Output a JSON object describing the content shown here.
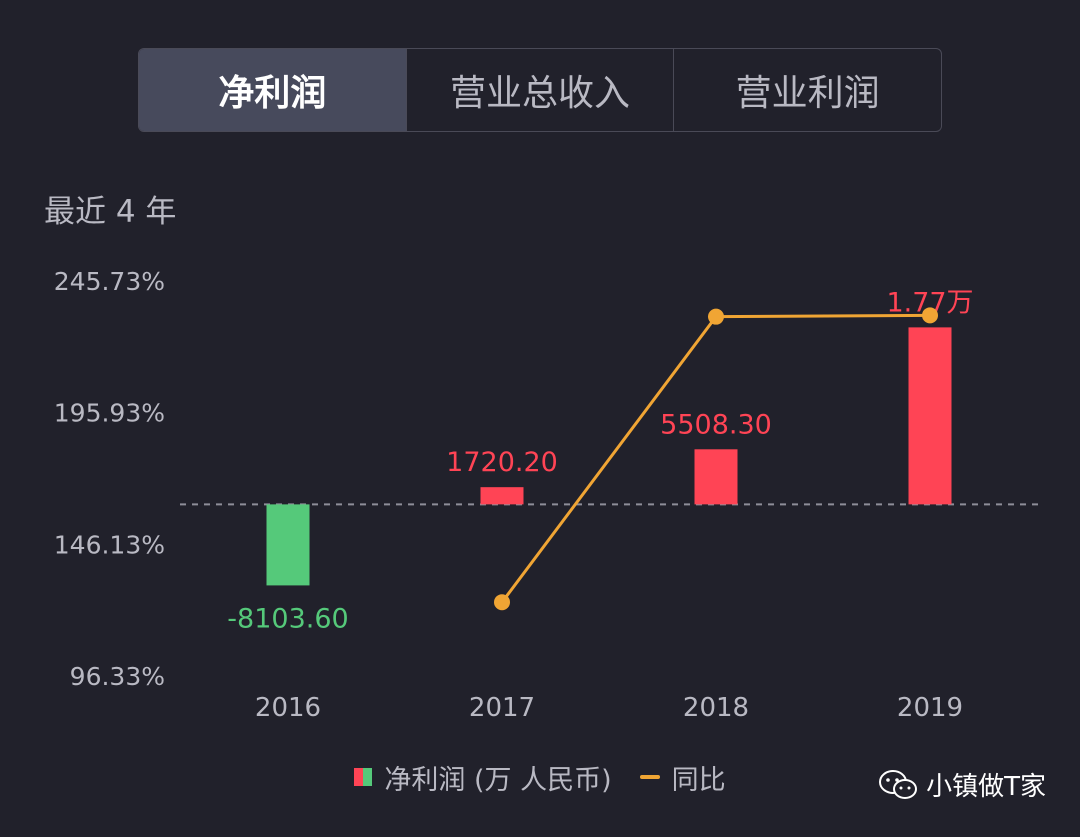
{
  "tabs": [
    {
      "label": "净利润",
      "active": true
    },
    {
      "label": "营业总收入",
      "active": false
    },
    {
      "label": "营业利润",
      "active": false
    }
  ],
  "period_label": "最近 4 年",
  "legend": {
    "bar_label": "净利润 (万 人民币)",
    "line_label": "同比"
  },
  "watermark": {
    "text": "小镇做T家",
    "icon": "wechat-icon"
  },
  "colors": {
    "positive": "#ff4455",
    "negative": "#55c97a",
    "line": "#f0a534",
    "axis_text": "#b9b9c3",
    "zero_line": "#8e8e99"
  },
  "chart_data": {
    "type": "bar",
    "categories": [
      "2016",
      "2017",
      "2018",
      "2019"
    ],
    "series": [
      {
        "type": "bar",
        "values": [
          -8103.6,
          1720.2,
          5508.3,
          17700
        ],
        "labels": [
          "-8103.60",
          "1720.20",
          "5508.30",
          "1.77万"
        ]
      },
      {
        "type": "line",
        "values": [
          null,
          125,
          233,
          233.5
        ]
      }
    ],
    "y_ticks": [
      "245.73%",
      "195.93%",
      "146.13%",
      "96.33%"
    ],
    "y_tick_values": [
      245.73,
      195.93,
      146.13,
      96.33
    ],
    "ylim": [
      96.33,
      245.73
    ],
    "bar_zero_ref": 162,
    "bar_scale": 0.01,
    "grid": false,
    "legend_position": "bottom"
  }
}
